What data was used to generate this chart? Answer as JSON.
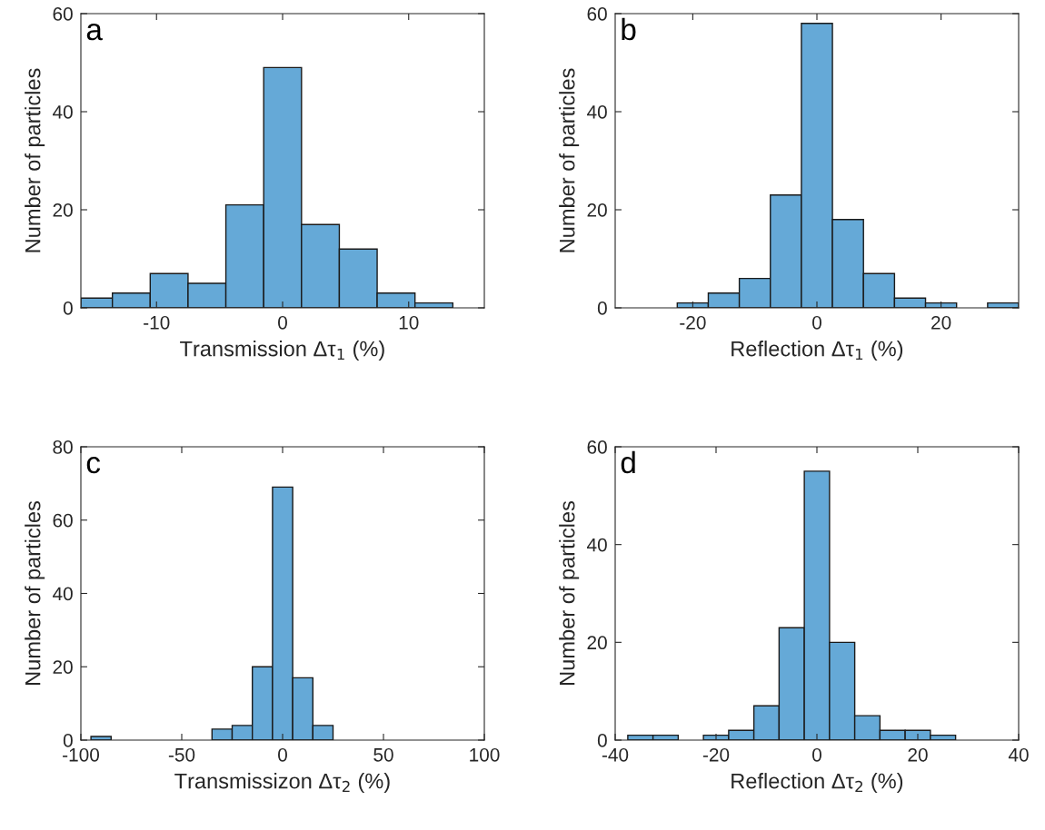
{
  "chart_data": [
    {
      "type": "histogram",
      "annotations": [
        "a"
      ],
      "xlabel": "Transmission Δτ$_{1}$ (%)",
      "ylabel": "Number of particles",
      "color": "#65a9d7",
      "grid": false,
      "bins": [
        -16,
        -13.5,
        -10.5,
        -7.5,
        -4.5,
        -1.5,
        1.5,
        4.5,
        7.5,
        10.5,
        13.5
      ],
      "values": [
        2,
        3,
        7,
        5,
        21,
        49,
        17,
        12,
        3,
        1
      ],
      "xlim": [
        -16,
        16
      ],
      "xticks": [
        -10,
        0,
        10
      ],
      "ylim": [
        0,
        60
      ],
      "yticks": [
        0,
        20,
        40,
        60
      ]
    },
    {
      "type": "histogram",
      "annotations": [
        "b"
      ],
      "xlabel": "Reflection Δτ$_{1}$ (%)",
      "ylabel": "Number of particles",
      "color": "#65a9d7",
      "grid": false,
      "bins": [
        -22.5,
        -17.5,
        -12.5,
        -7.5,
        -2.5,
        2.5,
        7.5,
        12.5,
        17.5,
        22.5,
        27.5,
        32.5
      ],
      "values": [
        1,
        3,
        6,
        23,
        58,
        18,
        7,
        2,
        1,
        0,
        1
      ],
      "xlim": [
        -32.5,
        32.5
      ],
      "xticks": [
        -20,
        0,
        20
      ],
      "ylim": [
        0,
        60
      ],
      "yticks": [
        0,
        20,
        40,
        60
      ]
    },
    {
      "type": "histogram",
      "annotations": [
        "c"
      ],
      "xlabel": "Transmissizon Δτ$_{2}$ (%)",
      "ylabel": "Number of particles",
      "color": "#65a9d7",
      "grid": false,
      "bins": [
        -95,
        -85,
        -75,
        -65,
        -55,
        -45,
        -35,
        -25,
        -15,
        -5,
        5,
        15,
        25
      ],
      "values": [
        1,
        0,
        0,
        0,
        0,
        0,
        3,
        4,
        20,
        69,
        17,
        4
      ],
      "xlim": [
        -100,
        100
      ],
      "xticks": [
        -100,
        -50,
        0,
        50,
        100
      ],
      "ylim": [
        0,
        80
      ],
      "yticks": [
        0,
        20,
        40,
        60,
        80
      ]
    },
    {
      "type": "histogram",
      "annotations": [
        "d"
      ],
      "xlabel": "Reflection Δτ$_{2}$ (%)",
      "ylabel": "Number of particles",
      "color": "#65a9d7",
      "grid": false,
      "bins": [
        -37.5,
        -32.5,
        -27.5,
        -22.5,
        -17.5,
        -12.5,
        -7.5,
        -2.5,
        2.5,
        7.5,
        12.5,
        17.5,
        22.5,
        27.5
      ],
      "values": [
        1,
        1,
        0,
        1,
        2,
        7,
        23,
        55,
        20,
        5,
        2,
        2,
        1
      ],
      "xlim": [
        -40,
        40
      ],
      "xticks": [
        -40,
        -20,
        0,
        20,
        40
      ],
      "ylim": [
        0,
        60
      ],
      "yticks": [
        0,
        20,
        40,
        60
      ]
    }
  ]
}
